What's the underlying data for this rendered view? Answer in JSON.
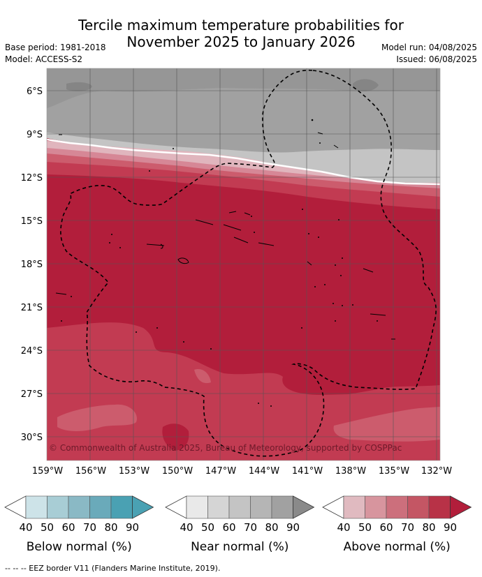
{
  "title_line1": "Tercile maximum temperature probabilities for",
  "title_line2": "November 2025 to January 2026",
  "meta": {
    "base_period": "Base period: 1981-2018",
    "model": "Model: ACCESS-S2",
    "model_run": "Model run: 04/08/2025",
    "issued": "Issued: 06/08/2025"
  },
  "map": {
    "lat_labels": [
      "6°S",
      "9°S",
      "12°S",
      "15°S",
      "18°S",
      "21°S",
      "24°S",
      "27°S",
      "30°S"
    ],
    "lon_labels": [
      "159°W",
      "156°W",
      "153°W",
      "150°W",
      "147°W",
      "144°W",
      "141°W",
      "138°W",
      "135°W",
      "132°W"
    ],
    "copyright": "© Commonwealth of Australia 2025, Bureau of Meteorology, supported by COSPPac"
  },
  "legend": {
    "tick_labels": [
      "40",
      "50",
      "60",
      "70",
      "80",
      "90"
    ],
    "below": {
      "title": "Below normal (%)",
      "colors": [
        "#cde3e8",
        "#a8cdd5",
        "#8ab9c5",
        "#6aaaba",
        "#4aa1b3"
      ],
      "arrow": "#4aa1b3"
    },
    "near": {
      "title": "Near normal (%)",
      "colors": [
        "#e9e9e9",
        "#d5d5d5",
        "#c4c4c4",
        "#b5b5b5",
        "#a1a1a1"
      ],
      "arrow": "#8a8a8a"
    },
    "above": {
      "title": "Above normal (%)",
      "colors": [
        "#e0bac0",
        "#d7959e",
        "#cc6f7c",
        "#c45664",
        "#b83247"
      ],
      "arrow": "#b21e3b"
    }
  },
  "footnote": "--  --  -- EEZ border V11 (Flanders Marine Institute, 2019)."
}
